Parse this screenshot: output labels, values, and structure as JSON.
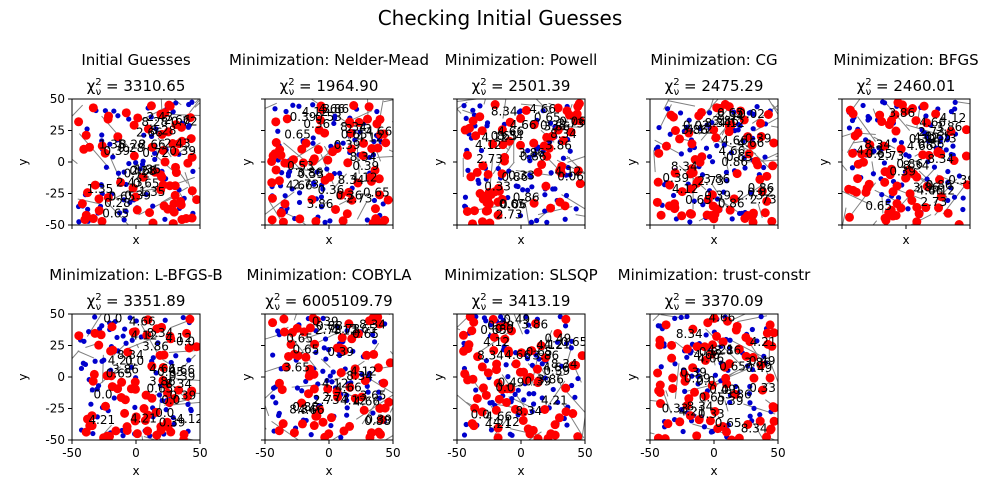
{
  "figure": {
    "suptitle": "Checking Initial Guesses"
  },
  "chart_data": {
    "type": "scatter",
    "xlim": [
      -50,
      50
    ],
    "ylim": [
      -50,
      50
    ],
    "grid": false,
    "colors": {
      "points_a": "#ff0000",
      "points_b": "#0000cc",
      "segments": "#808080"
    },
    "subplots": [
      {
        "title": "Initial Guesses",
        "chi2": "3310.65",
        "row": 0,
        "col": 0,
        "annotations": [
          "2.66",
          "1.35",
          "0.65",
          "8.28",
          "2.43",
          "0.72",
          "0.39",
          "0.28"
        ]
      },
      {
        "title": "Minimization: Nelder-Mead",
        "chi2": "1964.90",
        "row": 0,
        "col": 1,
        "annotations": [
          "4.12",
          "2.73",
          "8.34",
          "0.65",
          "0.36",
          "4.66",
          "3.86",
          "0.39",
          "0.53"
        ]
      },
      {
        "title": "Minimization: Powell",
        "chi2": "2501.39",
        "row": 0,
        "col": 2,
        "annotations": [
          "4.12",
          "2.73",
          "8.34",
          "0.65",
          "0.86",
          "0.06",
          "4.66",
          "3.86",
          "0.33"
        ]
      },
      {
        "title": "Minimization: CG",
        "chi2": "2475.29",
        "row": 0,
        "col": 3,
        "annotations": [
          "4.12",
          "2.73",
          "8.34",
          "0.65",
          "0.86",
          "0.02",
          "4.66",
          "3.86",
          "0.39"
        ]
      },
      {
        "title": "Minimization: BFGS",
        "chi2": "2460.01",
        "row": 0,
        "col": 4,
        "annotations": [
          "4.12",
          "2.73",
          "8.34",
          "0.65",
          "0.86",
          "4.66",
          "3.86",
          "0.39"
        ]
      },
      {
        "title": "Minimization: L-BFGS-B",
        "chi2": "3351.89",
        "row": 1,
        "col": 0,
        "annotations": [
          "0.0",
          "4.12",
          "4.21",
          "8.34",
          "0.65",
          "0.39",
          "4.66",
          "0.0",
          "3.86"
        ]
      },
      {
        "title": "Minimization: COBYLA",
        "chi2": "6005109.79",
        "row": 1,
        "col": 1,
        "annotations": [
          "4.12",
          "2.73",
          "8.34",
          "0.65",
          "0.88",
          "4.66",
          "3.65",
          "0.39"
        ]
      },
      {
        "title": "Minimization: SLSQP",
        "chi2": "3413.19",
        "row": 1,
        "col": 2,
        "annotations": [
          "0.0",
          "4.12",
          "4.21",
          "8.34",
          "0.65",
          "4.66",
          "3.86",
          "0.49",
          "0.39"
        ]
      },
      {
        "title": "Minimization: trust-constr",
        "chi2": "3370.09",
        "row": 1,
        "col": 3,
        "annotations": [
          "0.0",
          "4.21",
          "8.34",
          "0.65",
          "0.33",
          "4.66",
          "3.86",
          "0.49",
          "0.39"
        ]
      }
    ],
    "xlabel": "x",
    "ylabel": "y",
    "xticks": [
      -50,
      0,
      50
    ],
    "yticks": [
      -50,
      -25,
      0,
      25,
      50
    ]
  }
}
